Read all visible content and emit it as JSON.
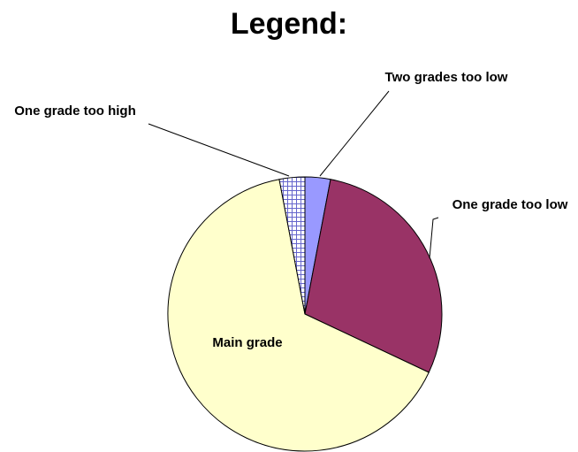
{
  "chart_data": {
    "type": "pie",
    "title": "Legend:",
    "categories": [
      "Two grades too low",
      "One grade too low",
      "Main grade",
      "One grade too high"
    ],
    "values": [
      3,
      29,
      65,
      3
    ],
    "colors": [
      "#9999ff",
      "#993366",
      "#ffffcc",
      "#ffffff"
    ],
    "patterns": [
      null,
      null,
      null,
      "crosshatch"
    ]
  }
}
